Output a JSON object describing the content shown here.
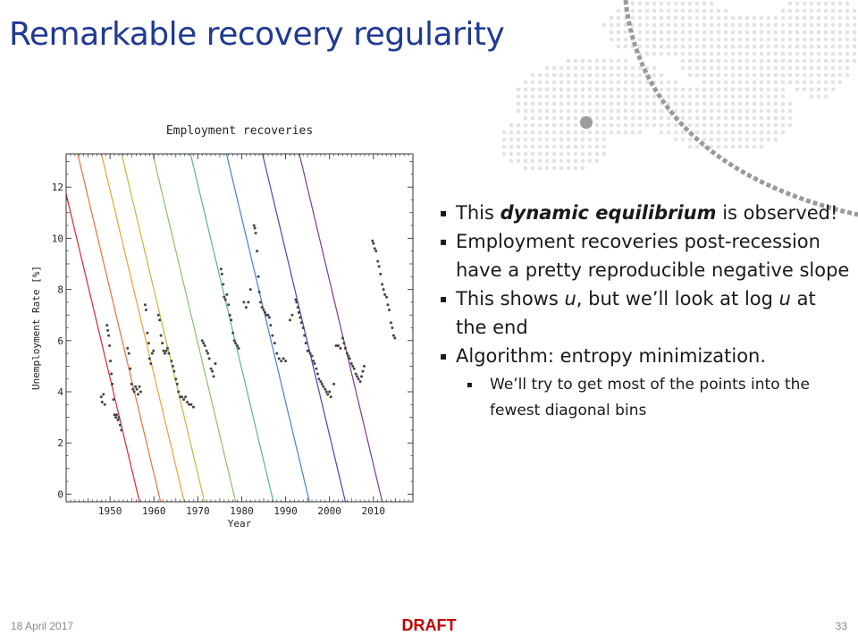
{
  "slide": {
    "title": "Remarkable recovery regularity",
    "bullets": [
      {
        "pre": "This ",
        "emph": "dynamic equilibrium",
        "post": " is observed!"
      },
      {
        "text": "Employment recoveries post-recession have a pretty reproducible negative slope"
      },
      {
        "parts": [
          "This shows ",
          "u",
          ", but we’ll look at log ",
          "u",
          " at the end"
        ]
      },
      {
        "text": "Algorithm: entropy minimization."
      }
    ],
    "subbullet": "We’ll try to get most of the points into the fewest diagonal bins",
    "bullet_marker": "▪",
    "footer": {
      "date": "18 April 2017",
      "status": "DRAFT",
      "page": "33"
    },
    "colors": {
      "title": "#1f3a93",
      "draft": "#c00000",
      "points": "#444444"
    }
  },
  "chart_data": {
    "type": "scatter",
    "title": "Employment recoveries",
    "xlabel": "Year",
    "ylabel": "Unemployment Rate [%]",
    "xlim": [
      1940,
      2019
    ],
    "ylim": [
      -0.3,
      13.3
    ],
    "xticks": [
      1950,
      1960,
      1970,
      1980,
      1990,
      2000,
      2010
    ],
    "yticks": [
      0,
      2,
      4,
      6,
      8,
      10,
      12
    ],
    "grid": false,
    "recovery_lines": {
      "slope_per_year": -0.72,
      "zero_crossings": [
        1956.3,
        1961.1,
        1966.5,
        1971.1,
        1978.2,
        1986.8,
        1995.0,
        2003.2,
        2011.6
      ],
      "colors": [
        "#d22c2c",
        "#e8743b",
        "#e8a33b",
        "#c9b43a",
        "#8cc06a",
        "#5aafa8",
        "#4a7fd0",
        "#4a46b8",
        "#7a3a9a"
      ]
    },
    "series": [
      {
        "points": [
          [
            1948.0,
            3.8
          ],
          [
            1948.2,
            3.6
          ],
          [
            1948.5,
            3.9
          ],
          [
            1948.8,
            3.5
          ],
          [
            1949.3,
            6.6
          ],
          [
            1949.5,
            6.4
          ],
          [
            1949.7,
            6.2
          ],
          [
            1949.9,
            5.8
          ],
          [
            1950.1,
            5.2
          ],
          [
            1950.3,
            4.7
          ],
          [
            1950.5,
            4.3
          ],
          [
            1950.8,
            3.7
          ],
          [
            1951.0,
            3.1
          ],
          [
            1951.3,
            3.0
          ],
          [
            1951.5,
            3.1
          ],
          [
            1951.8,
            2.9
          ],
          [
            1952.0,
            3.0
          ],
          [
            1952.3,
            2.7
          ],
          [
            1952.6,
            2.5
          ],
          [
            1954.0,
            5.7
          ],
          [
            1954.3,
            5.5
          ],
          [
            1954.6,
            4.9
          ],
          [
            1954.9,
            4.3
          ],
          [
            1955.2,
            4.1
          ],
          [
            1955.5,
            4.0
          ],
          [
            1955.8,
            4.2
          ],
          [
            1956.1,
            4.1
          ],
          [
            1956.4,
            3.9
          ],
          [
            1956.7,
            4.2
          ],
          [
            1957.0,
            4.0
          ],
          [
            1958.0,
            7.4
          ],
          [
            1958.2,
            7.2
          ],
          [
            1958.5,
            6.3
          ],
          [
            1958.8,
            5.9
          ],
          [
            1959.0,
            5.3
          ],
          [
            1959.3,
            5.1
          ],
          [
            1959.6,
            5.5
          ],
          [
            1959.9,
            5.6
          ],
          [
            1961.0,
            7.0
          ],
          [
            1961.3,
            6.8
          ],
          [
            1961.6,
            6.2
          ],
          [
            1961.9,
            5.9
          ],
          [
            1962.2,
            5.6
          ],
          [
            1962.5,
            5.5
          ],
          [
            1962.8,
            5.6
          ],
          [
            1963.1,
            5.7
          ],
          [
            1963.4,
            5.5
          ],
          [
            1964.0,
            5.2
          ],
          [
            1964.3,
            5.0
          ],
          [
            1964.6,
            4.8
          ],
          [
            1965.0,
            4.5
          ],
          [
            1965.3,
            4.3
          ],
          [
            1965.6,
            4.0
          ],
          [
            1966.0,
            3.8
          ],
          [
            1966.4,
            3.8
          ],
          [
            1966.8,
            3.7
          ],
          [
            1967.2,
            3.8
          ],
          [
            1967.6,
            3.6
          ],
          [
            1968.0,
            3.5
          ],
          [
            1968.5,
            3.5
          ],
          [
            1969.0,
            3.4
          ],
          [
            1971.0,
            6.0
          ],
          [
            1971.3,
            5.9
          ],
          [
            1971.6,
            5.8
          ],
          [
            1972.0,
            5.6
          ],
          [
            1972.3,
            5.5
          ],
          [
            1972.6,
            5.3
          ],
          [
            1973.0,
            4.9
          ],
          [
            1973.3,
            4.8
          ],
          [
            1973.6,
            4.6
          ],
          [
            1974.0,
            5.1
          ],
          [
            1975.3,
            8.8
          ],
          [
            1975.5,
            8.6
          ],
          [
            1975.8,
            8.2
          ],
          [
            1976.0,
            7.7
          ],
          [
            1976.3,
            7.6
          ],
          [
            1976.6,
            7.8
          ],
          [
            1977.0,
            7.4
          ],
          [
            1977.3,
            7.0
          ],
          [
            1977.6,
            6.8
          ],
          [
            1978.0,
            6.3
          ],
          [
            1978.3,
            6.0
          ],
          [
            1978.6,
            5.9
          ],
          [
            1979.0,
            5.8
          ],
          [
            1979.3,
            5.7
          ],
          [
            1980.5,
            7.5
          ],
          [
            1981.0,
            7.3
          ],
          [
            1981.5,
            7.5
          ],
          [
            1982.0,
            8.0
          ],
          [
            1982.8,
            10.5
          ],
          [
            1983.0,
            10.4
          ],
          [
            1983.2,
            10.2
          ],
          [
            1983.5,
            9.5
          ],
          [
            1983.8,
            8.5
          ],
          [
            1984.0,
            7.9
          ],
          [
            1984.3,
            7.5
          ],
          [
            1984.6,
            7.3
          ],
          [
            1985.0,
            7.2
          ],
          [
            1985.3,
            7.1
          ],
          [
            1985.6,
            7.0
          ],
          [
            1986.0,
            7.0
          ],
          [
            1986.3,
            6.9
          ],
          [
            1986.6,
            6.6
          ],
          [
            1987.0,
            6.2
          ],
          [
            1987.5,
            5.9
          ],
          [
            1988.0,
            5.5
          ],
          [
            1988.5,
            5.3
          ],
          [
            1989.0,
            5.2
          ],
          [
            1989.5,
            5.3
          ],
          [
            1990.0,
            5.2
          ],
          [
            1991.0,
            6.8
          ],
          [
            1991.5,
            7.0
          ],
          [
            1992.3,
            7.6
          ],
          [
            1992.5,
            7.5
          ],
          [
            1992.8,
            7.3
          ],
          [
            1993.0,
            7.1
          ],
          [
            1993.3,
            6.9
          ],
          [
            1993.6,
            6.7
          ],
          [
            1994.0,
            6.5
          ],
          [
            1994.3,
            6.2
          ],
          [
            1994.6,
            5.9
          ],
          [
            1995.0,
            5.6
          ],
          [
            1995.3,
            5.6
          ],
          [
            1995.6,
            5.5
          ],
          [
            1996.0,
            5.4
          ],
          [
            1996.3,
            5.2
          ],
          [
            1996.6,
            5.1
          ],
          [
            1997.0,
            4.9
          ],
          [
            1997.3,
            4.7
          ],
          [
            1997.6,
            4.5
          ],
          [
            1998.0,
            4.4
          ],
          [
            1998.3,
            4.3
          ],
          [
            1998.6,
            4.2
          ],
          [
            1999.0,
            4.1
          ],
          [
            1999.3,
            4.0
          ],
          [
            1999.6,
            3.9
          ],
          [
            2000.0,
            4.0
          ],
          [
            2000.3,
            3.8
          ],
          [
            2001.0,
            4.3
          ],
          [
            2001.5,
            5.8
          ],
          [
            2002.0,
            5.8
          ],
          [
            2002.5,
            5.7
          ],
          [
            2003.0,
            6.1
          ],
          [
            2003.3,
            5.9
          ],
          [
            2003.6,
            5.7
          ],
          [
            2004.0,
            5.5
          ],
          [
            2004.3,
            5.4
          ],
          [
            2004.6,
            5.3
          ],
          [
            2005.0,
            5.1
          ],
          [
            2005.3,
            5.0
          ],
          [
            2005.6,
            4.9
          ],
          [
            2006.0,
            4.7
          ],
          [
            2006.3,
            4.6
          ],
          [
            2006.6,
            4.5
          ],
          [
            2007.0,
            4.4
          ],
          [
            2007.3,
            4.6
          ],
          [
            2007.6,
            4.8
          ],
          [
            2007.9,
            5.0
          ],
          [
            2009.8,
            9.9
          ],
          [
            2010.0,
            9.8
          ],
          [
            2010.3,
            9.6
          ],
          [
            2010.6,
            9.5
          ],
          [
            2011.0,
            9.1
          ],
          [
            2011.3,
            8.9
          ],
          [
            2011.6,
            8.6
          ],
          [
            2012.0,
            8.2
          ],
          [
            2012.3,
            8.0
          ],
          [
            2012.6,
            7.8
          ],
          [
            2013.0,
            7.7
          ],
          [
            2013.3,
            7.4
          ],
          [
            2013.6,
            7.2
          ],
          [
            2014.0,
            6.7
          ],
          [
            2014.3,
            6.5
          ],
          [
            2014.6,
            6.2
          ],
          [
            2014.9,
            6.1
          ]
        ]
      }
    ]
  }
}
